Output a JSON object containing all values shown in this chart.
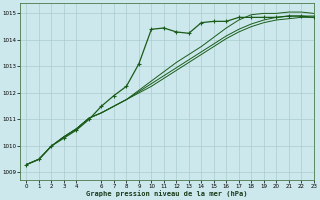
{
  "title": "Graphe pression niveau de la mer (hPa)",
  "bg_color": "#cce8ec",
  "grid_color": "#aacccc",
  "line_color": "#1a5c1a",
  "xlim": [
    -0.5,
    23
  ],
  "ylim": [
    1008.7,
    1015.4
  ],
  "yticks": [
    1009,
    1010,
    1011,
    1012,
    1013,
    1014,
    1015
  ],
  "xticks": [
    0,
    1,
    2,
    3,
    4,
    6,
    7,
    8,
    9,
    10,
    11,
    12,
    13,
    14,
    15,
    16,
    17,
    18,
    19,
    20,
    21,
    22,
    23
  ],
  "series": [
    [
      1009.3,
      1009.5,
      1010.0,
      1010.3,
      1010.6,
      1011.0,
      1011.5,
      1011.9,
      1012.25,
      1013.1,
      1014.4,
      1014.45,
      1014.3,
      1014.25,
      1014.65,
      1014.7,
      1014.7,
      1014.85,
      1014.85,
      1014.85,
      1014.85,
      1014.9,
      1014.9,
      1014.85
    ],
    [
      1009.3,
      1009.5,
      1010.0,
      1010.35,
      1010.65,
      1011.05,
      1011.25,
      1011.5,
      1011.75,
      1012.0,
      1012.25,
      1012.55,
      1012.85,
      1013.15,
      1013.45,
      1013.75,
      1014.05,
      1014.3,
      1014.5,
      1014.65,
      1014.75,
      1014.8,
      1014.85,
      1014.85
    ],
    [
      1009.3,
      1009.5,
      1010.0,
      1010.35,
      1010.65,
      1011.05,
      1011.25,
      1011.5,
      1011.75,
      1012.05,
      1012.35,
      1012.65,
      1012.95,
      1013.25,
      1013.55,
      1013.85,
      1014.15,
      1014.4,
      1014.6,
      1014.75,
      1014.85,
      1014.9,
      1014.9,
      1014.9
    ],
    [
      1009.3,
      1009.5,
      1010.0,
      1010.35,
      1010.65,
      1011.05,
      1011.25,
      1011.5,
      1011.75,
      1012.1,
      1012.45,
      1012.8,
      1013.15,
      1013.45,
      1013.75,
      1014.1,
      1014.45,
      1014.75,
      1014.95,
      1015.0,
      1015.0,
      1015.05,
      1015.05,
      1015.0
    ]
  ],
  "figsize": [
    3.2,
    2.0
  ],
  "dpi": 100
}
